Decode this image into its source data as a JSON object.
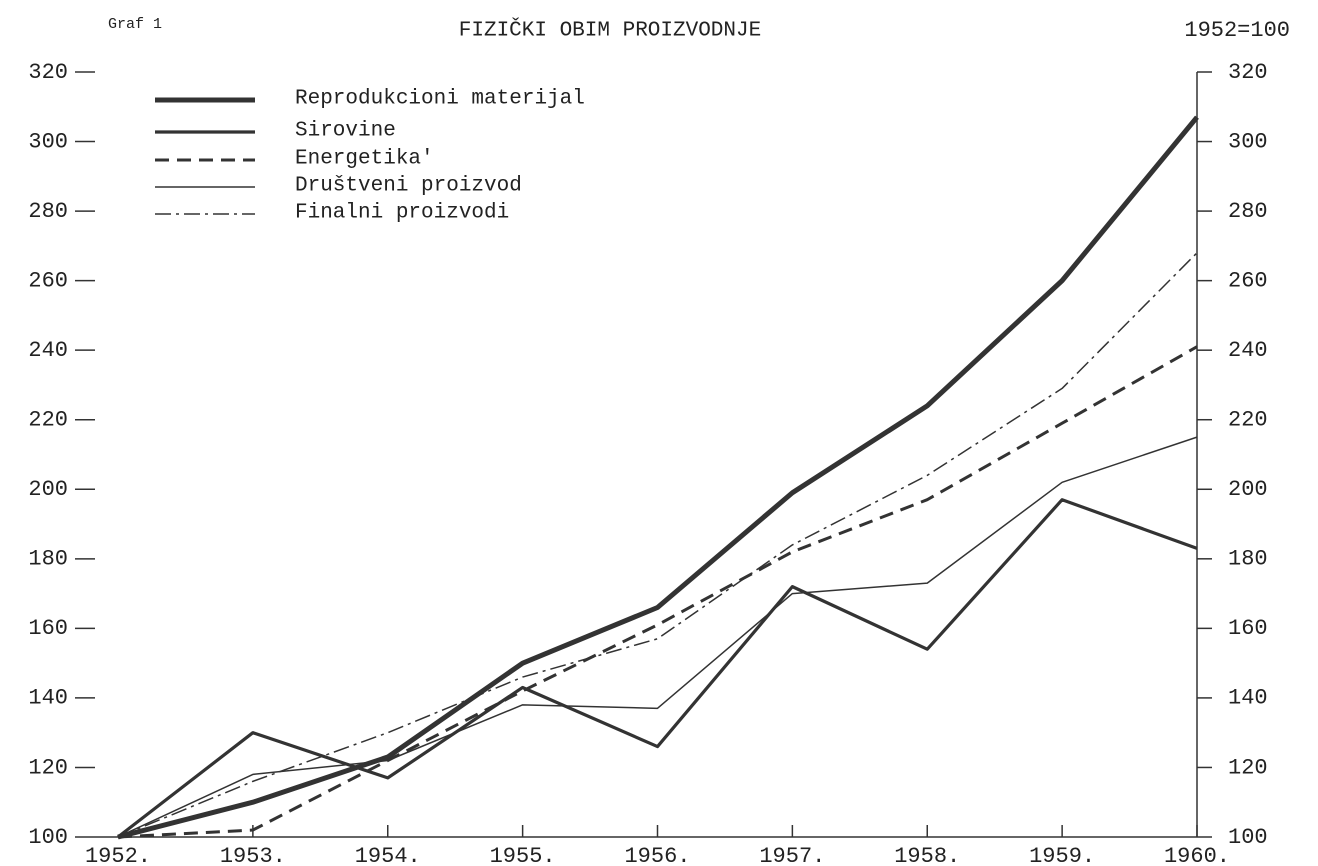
{
  "chart_data": {
    "type": "line",
    "title": "FIZIČKI OBIM PROIZVODNJE",
    "label": "Graf 1",
    "subtitle": "1952=100",
    "categories": [
      "1952.",
      "1953.",
      "1954.",
      "1955.",
      "1956.",
      "1957.",
      "1958.",
      "1959.",
      "1960."
    ],
    "series": [
      {
        "name": "Reprodukcioni materijal",
        "color": "#333333",
        "line_style": "solid",
        "line_width": 5,
        "values": [
          100,
          110,
          123,
          150,
          166,
          199,
          224,
          260,
          307
        ]
      },
      {
        "name": "Sirovine",
        "color": "#333333",
        "line_style": "solid",
        "line_width": 3.2,
        "values": [
          100,
          130,
          117,
          143,
          126,
          172,
          154,
          197,
          183
        ]
      },
      {
        "name": "Energetika'",
        "color": "#333333",
        "line_style": "dashed",
        "line_width": 3,
        "values": [
          100,
          102,
          122,
          142,
          161,
          182,
          197,
          219,
          241
        ]
      },
      {
        "name": "Društveni proizvod",
        "color": "#333333",
        "line_style": "solid",
        "line_width": 1.5,
        "values": [
          100,
          118,
          122,
          138,
          137,
          170,
          173,
          202,
          215
        ]
      },
      {
        "name": "Finalni proizvodi",
        "color": "#333333",
        "line_style": "dashdot",
        "line_width": 1.5,
        "values": [
          100,
          116,
          130,
          146,
          157,
          184,
          204,
          229,
          268
        ]
      }
    ],
    "ylim": [
      100,
      320
    ],
    "yticks": [
      100,
      120,
      140,
      160,
      180,
      200,
      220,
      240,
      260,
      280,
      300,
      320
    ],
    "y2lim": [
      100,
      320
    ],
    "y2ticks": [
      100,
      120,
      140,
      160,
      180,
      200,
      220,
      240,
      260,
      280,
      300,
      320
    ],
    "legend": "upper left"
  }
}
